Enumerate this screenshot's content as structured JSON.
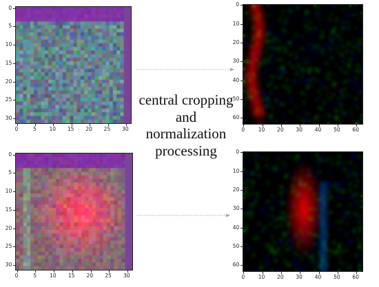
{
  "title": "",
  "center_label_lines": [
    "central cropping",
    "and",
    "normalization",
    "processing"
  ],
  "panels": [
    {
      "name": "top-left",
      "x_ticks": [
        "0",
        "5",
        "10",
        "15",
        "20",
        "25",
        "30"
      ],
      "y_ticks": [
        "0",
        "5",
        "10",
        "15",
        "20",
        "25",
        "30"
      ]
    },
    {
      "name": "bottom-left",
      "x_ticks": [
        "0",
        "5",
        "10",
        "15",
        "20",
        "25",
        "30"
      ],
      "y_ticks": [
        "0",
        "5",
        "10",
        "15",
        "20",
        "25",
        "30"
      ]
    },
    {
      "name": "top-right",
      "x_ticks": [
        "0",
        "10",
        "20",
        "30",
        "40",
        "50",
        "60"
      ],
      "y_ticks": [
        "0",
        "10",
        "20",
        "30",
        "40",
        "50",
        "60"
      ]
    },
    {
      "name": "bottom-right",
      "x_ticks": [
        "0",
        "10",
        "20",
        "30",
        "40",
        "50",
        "60"
      ],
      "y_ticks": [
        "0",
        "10",
        "20",
        "30",
        "40",
        "50",
        "60"
      ]
    }
  ],
  "colors": {
    "arrow": "#b9b9b9",
    "frame": "#222222"
  }
}
